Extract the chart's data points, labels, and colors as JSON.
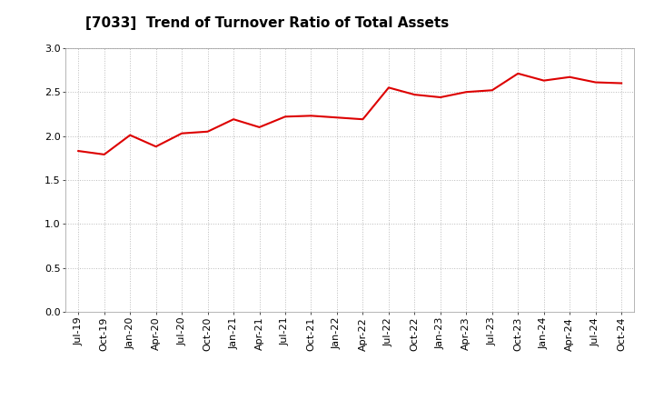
{
  "title": "[7033]  Trend of Turnover Ratio of Total Assets",
  "x_labels": [
    "Jul-19",
    "Oct-19",
    "Jan-20",
    "Apr-20",
    "Jul-20",
    "Oct-20",
    "Jan-21",
    "Apr-21",
    "Jul-21",
    "Oct-21",
    "Jan-22",
    "Apr-22",
    "Jul-22",
    "Oct-22",
    "Jan-23",
    "Apr-23",
    "Jul-23",
    "Oct-23",
    "Jan-24",
    "Apr-24",
    "Jul-24",
    "Oct-24"
  ],
  "values": [
    1.83,
    1.79,
    2.01,
    1.88,
    2.03,
    2.05,
    2.19,
    2.1,
    2.22,
    2.23,
    2.21,
    2.19,
    2.55,
    2.47,
    2.44,
    2.5,
    2.52,
    2.71,
    2.63,
    2.67,
    2.61,
    2.6
  ],
  "line_color": "#dd0000",
  "line_width": 1.5,
  "ylim": [
    0.0,
    3.0
  ],
  "yticks": [
    0.0,
    0.5,
    1.0,
    1.5,
    2.0,
    2.5,
    3.0
  ],
  "background_color": "#ffffff",
  "grid_color": "#bbbbbb",
  "title_fontsize": 11,
  "tick_fontsize": 8
}
